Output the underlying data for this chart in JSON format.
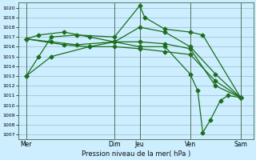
{
  "title": "",
  "xlabel": "Pression niveau de la mer( hPa )",
  "ylabel": "",
  "bg_color": "#cceeff",
  "grid_color": "#99bbcc",
  "line_color": "#1a6e1a",
  "ylim": [
    1006.5,
    1020.5
  ],
  "yticks": [
    1007,
    1008,
    1009,
    1010,
    1011,
    1012,
    1013,
    1014,
    1015,
    1016,
    1017,
    1018,
    1019,
    1020
  ],
  "day_labels": [
    "Mer",
    "Dim",
    "Jeu",
    "Ven",
    "Sam"
  ],
  "day_positions": [
    0,
    3.5,
    4.5,
    6.5,
    8.5
  ],
  "xlim": [
    -0.3,
    9.0
  ],
  "line1_x": [
    0,
    0.5,
    1.0,
    2.0,
    3.5,
    4.5,
    4.7,
    5.5,
    6.5,
    7.0,
    8.5
  ],
  "line1_y": [
    1013.0,
    1015.0,
    1017.0,
    1017.2,
    1017.0,
    1020.2,
    1019.0,
    1017.8,
    1017.5,
    1017.2,
    1010.8
  ],
  "line2_x": [
    0,
    0.5,
    1.5,
    2.5,
    3.5,
    4.5,
    5.5,
    6.5,
    7.5,
    8.5
  ],
  "line2_y": [
    1016.8,
    1017.2,
    1017.5,
    1017.0,
    1016.5,
    1018.0,
    1017.5,
    1016.0,
    1013.2,
    1010.8
  ],
  "line3_x": [
    0,
    1.0,
    2.0,
    3.5,
    4.5,
    5.5,
    6.5,
    7.5,
    8.5
  ],
  "line3_y": [
    1016.8,
    1016.5,
    1016.2,
    1016.5,
    1016.5,
    1016.3,
    1015.8,
    1012.0,
    1010.8
  ],
  "line4_x": [
    0,
    1.5,
    2.5,
    3.5,
    4.5,
    5.5,
    6.5,
    7.5,
    8.5
  ],
  "line4_y": [
    1016.8,
    1016.2,
    1016.0,
    1016.0,
    1015.8,
    1015.5,
    1015.2,
    1012.5,
    1010.8
  ],
  "line5_x": [
    0,
    1.0,
    2.5,
    3.5,
    4.5,
    5.5,
    6.5,
    6.8,
    7.0,
    7.3,
    7.7,
    8.0,
    8.5
  ],
  "line5_y": [
    1013.0,
    1015.0,
    1016.0,
    1016.5,
    1016.0,
    1016.0,
    1013.2,
    1011.5,
    1007.2,
    1008.5,
    1010.5,
    1011.0,
    1010.8
  ]
}
